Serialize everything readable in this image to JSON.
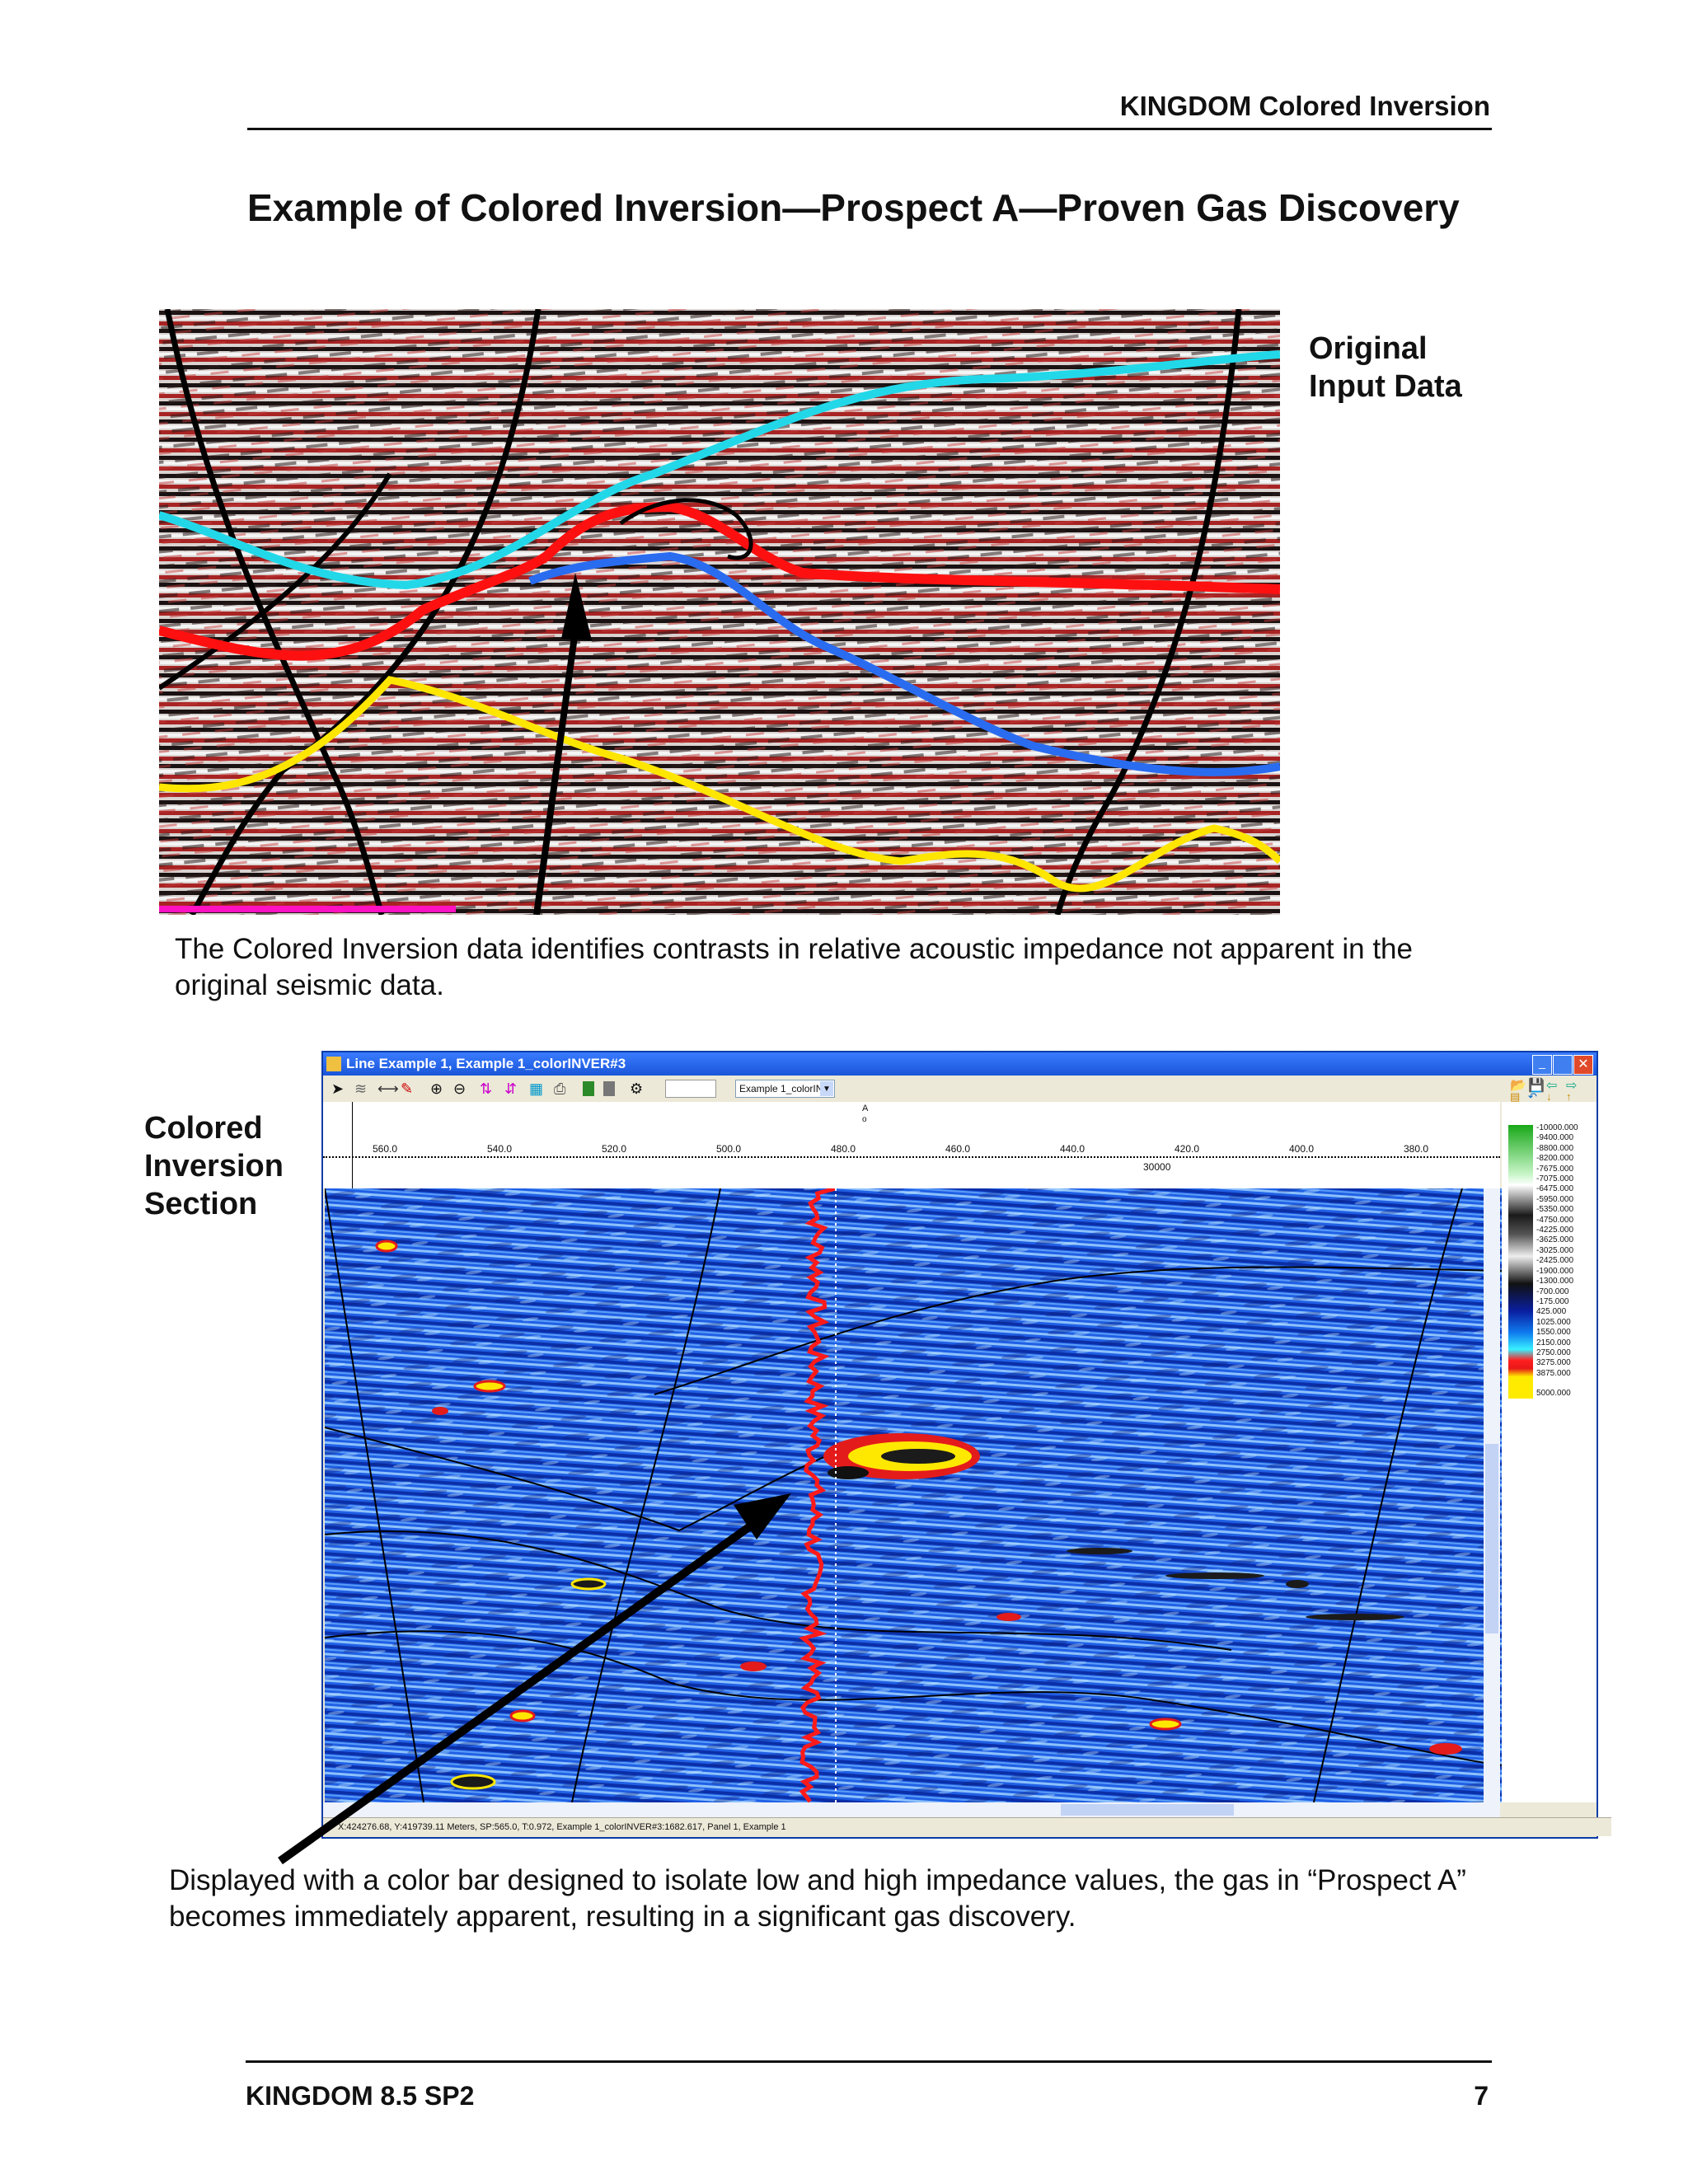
{
  "header": {
    "title": "KINGDOM Colored Inversion"
  },
  "page_title": "Example of Colored Inversion—Prospect A—Proven Gas Discovery",
  "figure1": {
    "label": "Original\nInput Data",
    "caption": "The Colored Inversion data identifies contrasts in relative acoustic impedance not apparent in the original seismic data."
  },
  "figure2": {
    "label": "Colored\nInversion\nSection",
    "window_title": "Line Example 1, Example 1_colorINVER#3",
    "toolbar_dropdown": "Example 1_colorINV",
    "ruler_marker": "A",
    "shotpoint_ticks": [
      "560.0",
      "540.0",
      "520.0",
      "500.0",
      "480.0",
      "460.0",
      "440.0",
      "420.0",
      "400.0",
      "380.0"
    ],
    "distance_tick": "30000",
    "colorbar_labels": [
      "-10000.000",
      "-9400.000",
      "-8800.000",
      "-8200.000",
      "-7675.000",
      "-7075.000",
      "-6475.000",
      "-5950.000",
      "-5350.000",
      "-4750.000",
      "-4225.000",
      "-3625.000",
      "-3025.000",
      "-2425.000",
      "-1900.000",
      "-1300.000",
      "-700.000",
      "-175.000",
      "425.000",
      "1025.000",
      "1550.000",
      "2150.000",
      "2750.000",
      "3275.000",
      "3875.000",
      "5000.000"
    ],
    "status_bar": "X:424276.68, Y:419739.11 Meters, SP:565.0, T:0.972, Example 1_colorINVER#3:1682.617, Panel 1, Example 1",
    "caption": "Displayed with a color bar designed to isolate low and high impedance values, the gas in “Prospect A” becomes immediately apparent, resulting in a significant gas discovery."
  },
  "footer": {
    "left": "KINGDOM 8.5 SP2",
    "right": "7"
  },
  "colors": {
    "seismic_red": "#b22222",
    "horizon_cyan": "#22d8e8",
    "horizon_red": "#ff1010",
    "horizon_blue": "#2a6cf0",
    "horizon_yellow": "#ffe600",
    "inversion_blue": "#1f5fe0",
    "title_bar": "#1a56d8"
  }
}
